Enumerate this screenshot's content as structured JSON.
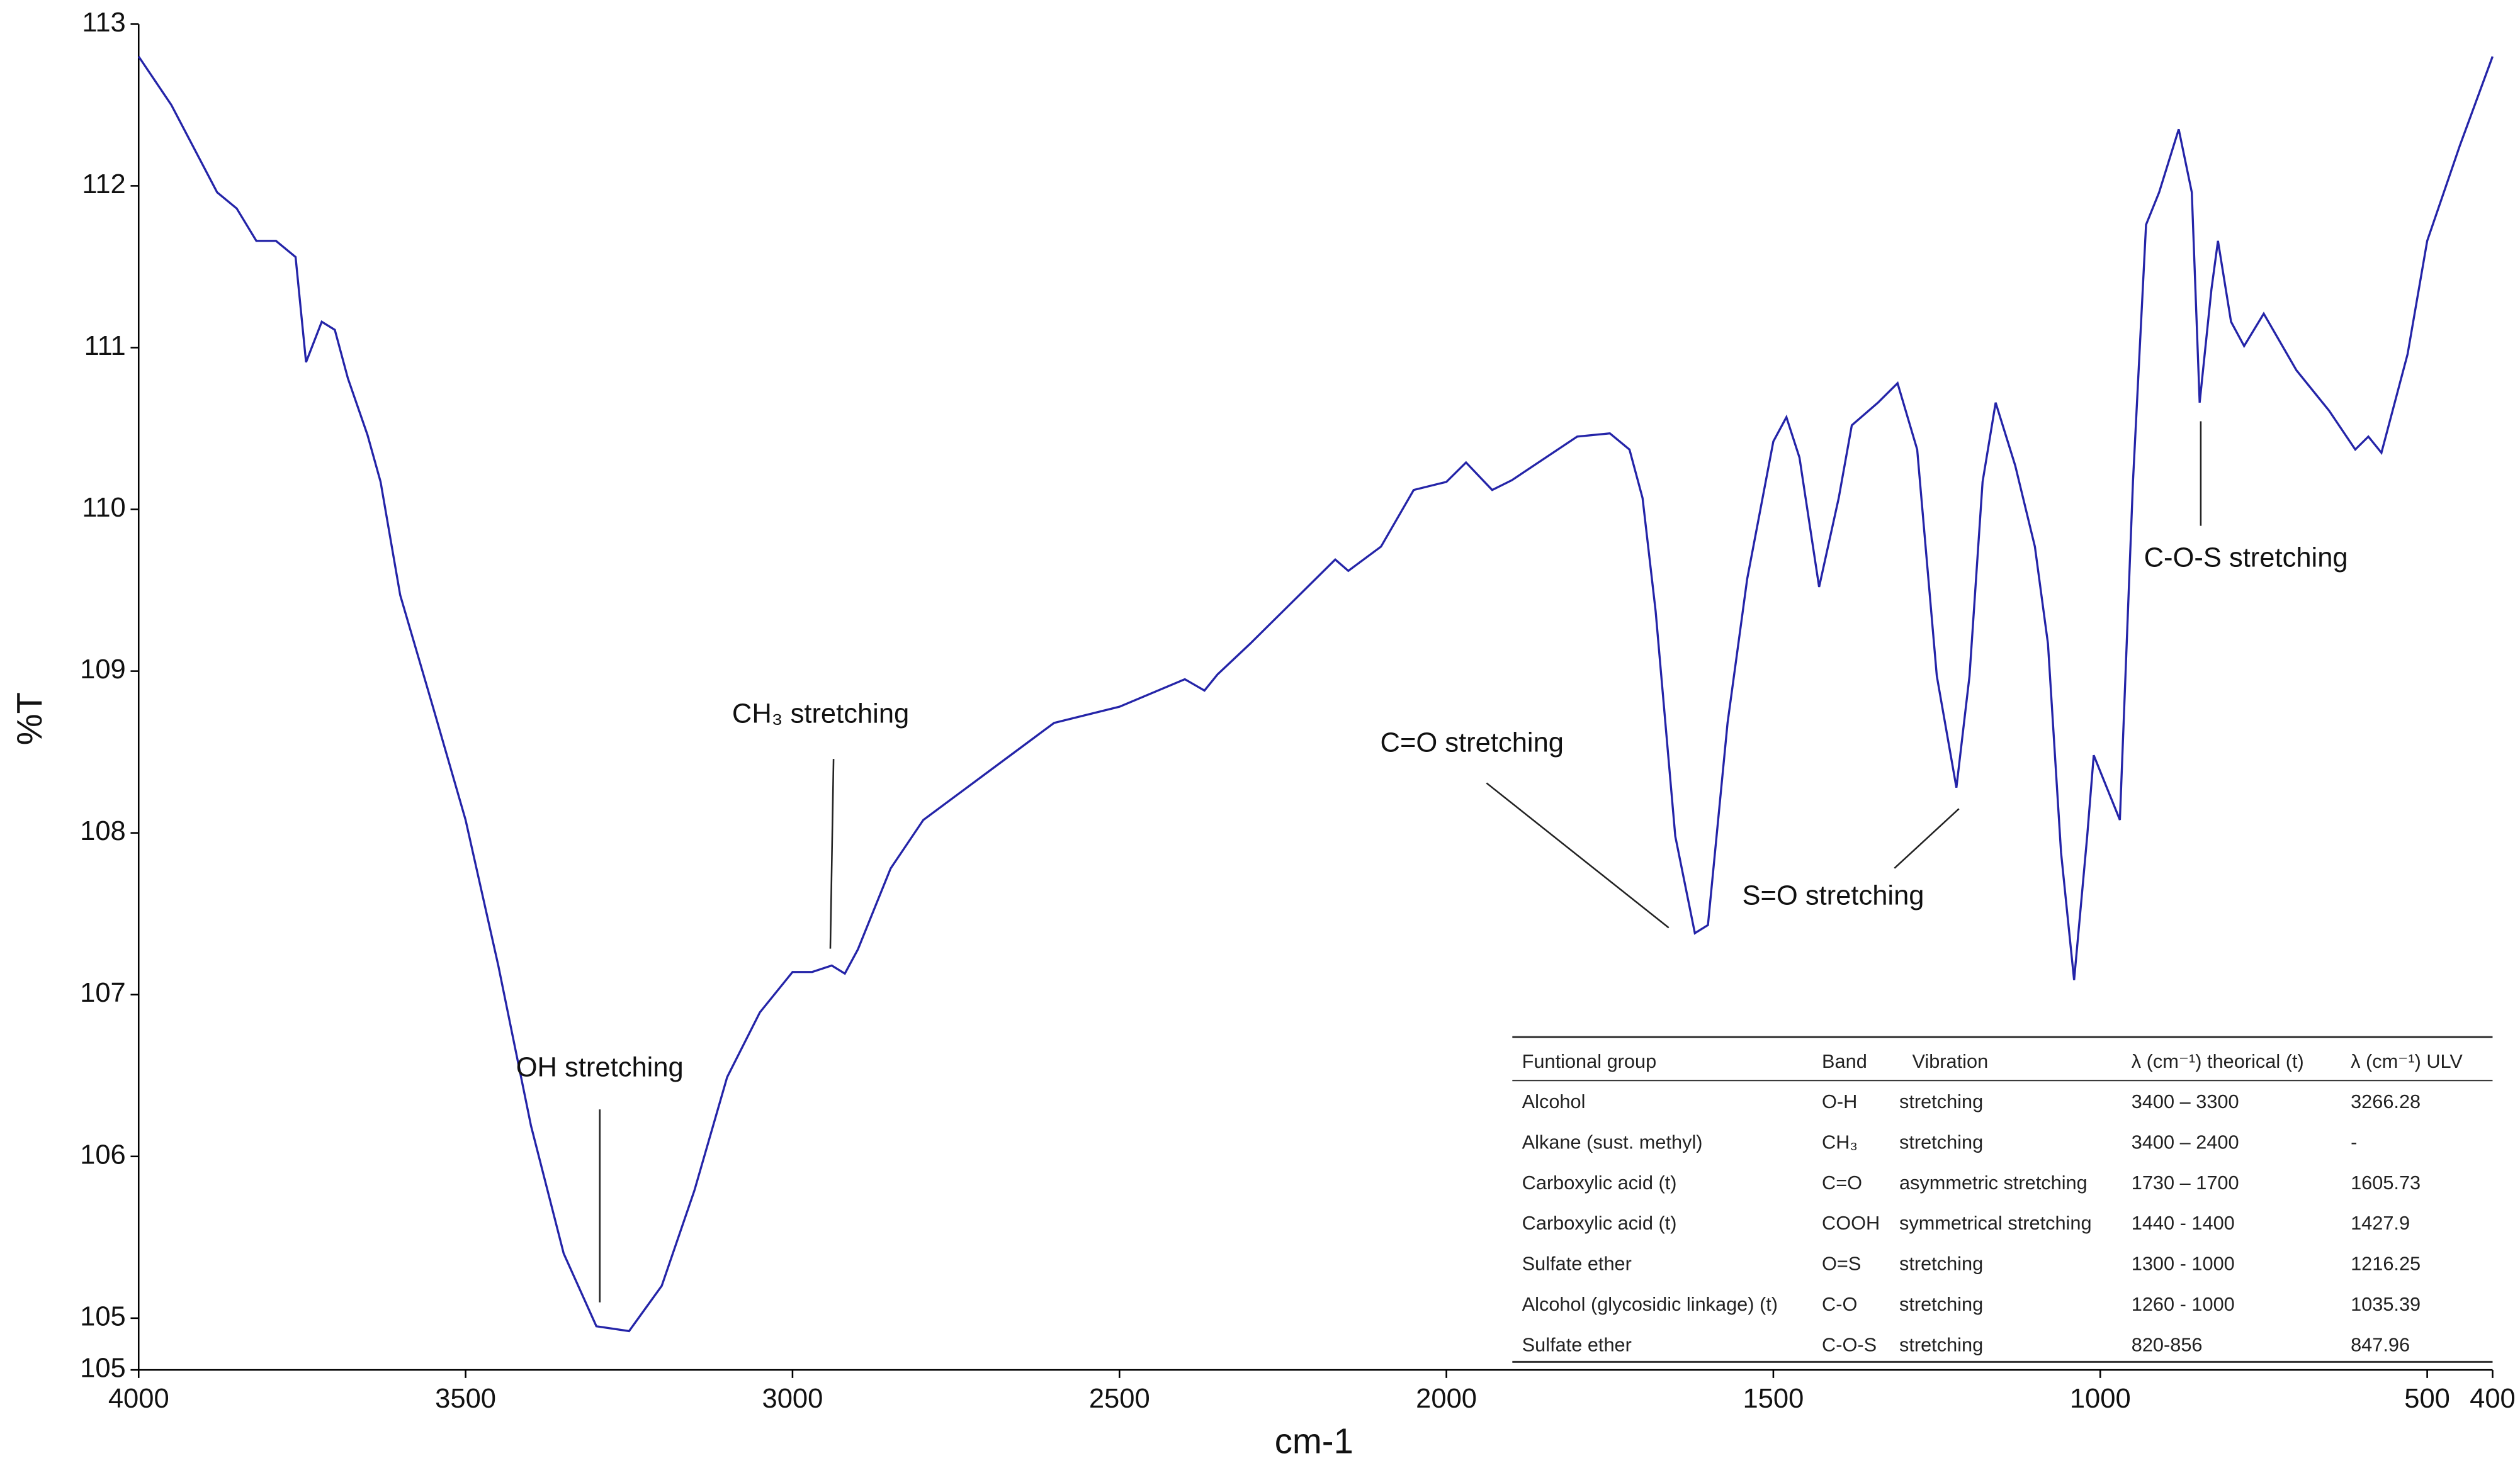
{
  "chart_data": {
    "type": "line",
    "xlabel": "cm-1",
    "ylabel": "%T",
    "xlim": [
      4000,
      400
    ],
    "ylim": [
      104.68,
      113
    ],
    "xticks": [
      4000,
      3500,
      3000,
      2500,
      2000,
      1500,
      1000,
      500,
      400
    ],
    "yticks": [
      {
        "value": 104.68,
        "label": "105"
      },
      105,
      106,
      107,
      108,
      109,
      110,
      111,
      112,
      113
    ],
    "x": [
      4000,
      3950,
      3880,
      3850,
      3820,
      3790,
      3760,
      3744,
      3720,
      3700,
      3680,
      3650,
      3630,
      3600,
      3550,
      3500,
      3450,
      3400,
      3350,
      3300,
      3250,
      3200,
      3150,
      3100,
      3050,
      3000,
      2970,
      2940,
      2920,
      2900,
      2850,
      2800,
      2700,
      2600,
      2500,
      2400,
      2370,
      2350,
      2300,
      2200,
      2170,
      2150,
      2100,
      2050,
      2000,
      1970,
      1930,
      1900,
      1800,
      1750,
      1720,
      1700,
      1680,
      1650,
      1620,
      1600,
      1570,
      1540,
      1500,
      1480,
      1460,
      1430,
      1400,
      1380,
      1340,
      1310,
      1280,
      1250,
      1220,
      1200,
      1180,
      1160,
      1130,
      1100,
      1080,
      1060,
      1040,
      1020,
      1010,
      990,
      970,
      950,
      930,
      910,
      880,
      860,
      848,
      830,
      820,
      800,
      780,
      750,
      700,
      650,
      610,
      590,
      570,
      530,
      500,
      450,
      400
    ],
    "series": [
      {
        "name": "Spectrum",
        "color": "#2424a8",
        "values": [
          112.8,
          112.5,
          111.96,
          111.86,
          111.66,
          111.66,
          111.56,
          110.91,
          111.16,
          111.11,
          110.81,
          110.46,
          110.17,
          109.47,
          108.78,
          108.08,
          107.18,
          106.19,
          105.4,
          104.95,
          104.92,
          105.2,
          105.79,
          106.49,
          106.89,
          107.14,
          107.14,
          107.18,
          107.13,
          107.28,
          107.78,
          108.08,
          108.38,
          108.68,
          108.78,
          108.95,
          108.88,
          108.98,
          109.17,
          109.57,
          109.69,
          109.62,
          109.77,
          110.12,
          110.17,
          110.29,
          110.12,
          110.18,
          110.45,
          110.47,
          110.37,
          110.07,
          109.37,
          107.98,
          107.38,
          107.43,
          108.68,
          109.57,
          110.42,
          110.57,
          110.32,
          109.52,
          110.07,
          110.52,
          110.66,
          110.78,
          110.37,
          108.97,
          108.28,
          108.97,
          110.17,
          110.66,
          110.27,
          109.77,
          109.17,
          107.88,
          107.09,
          107.98,
          108.48,
          108.28,
          108.08,
          110.17,
          111.76,
          111.96,
          112.35,
          111.96,
          110.66,
          111.36,
          111.66,
          111.16,
          111.01,
          111.21,
          110.86,
          110.61,
          110.37,
          110.45,
          110.35,
          110.96,
          111.66,
          112.25,
          112.8
        ]
      }
    ],
    "annotations": [
      "OH stretching",
      "CH₃ stretching",
      "C=O stretching",
      "S=O stretching",
      "C-O-S stretching"
    ]
  },
  "table": {
    "columns": [
      "Funtional group",
      "Band",
      "Vibration",
      "λ (cm⁻¹) theorical (t)",
      "λ (cm⁻¹) ULV"
    ],
    "rows": [
      [
        "Alcohol",
        "O-H",
        "stretching",
        "3400 – 3300",
        "3266.28"
      ],
      [
        "Alkane (sust. methyl)",
        "CH₃",
        "stretching",
        "3400 – 2400",
        "-"
      ],
      [
        "Carboxylic acid (t)",
        "C=O",
        "asymmetric stretching",
        "1730 – 1700",
        "1605.73"
      ],
      [
        "Carboxylic acid (t)",
        "COOH",
        "symmetrical stretching",
        "1440 - 1400",
        "1427.9"
      ],
      [
        "Sulfate ether",
        "O=S",
        "stretching",
        "1300 - 1000",
        "1216.25"
      ],
      [
        "Alcohol (glycosidic linkage) (t)",
        "C-O",
        "stretching",
        "1260 - 1000",
        "1035.39"
      ],
      [
        "Sulfate ether",
        "C-O-S",
        "stretching",
        "820-856",
        "847.96"
      ]
    ]
  }
}
